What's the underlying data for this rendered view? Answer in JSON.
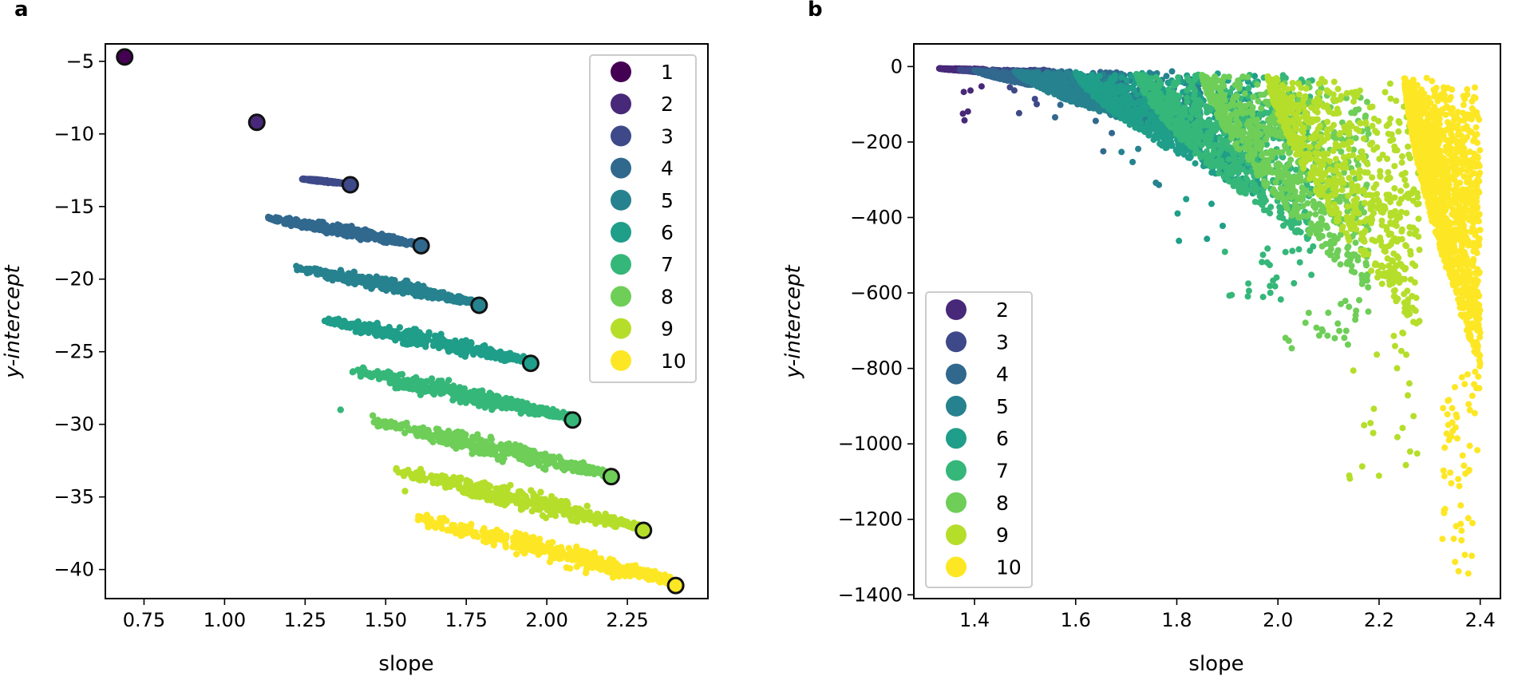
{
  "colors": {
    "1": "#440154",
    "2": "#482878",
    "3": "#3e4989",
    "4": "#31688e",
    "5": "#26828e",
    "6": "#1f9e89",
    "7": "#35b779",
    "8": "#6ece58",
    "9": "#b5de2b",
    "10": "#fde725"
  },
  "chart_data": [
    {
      "panel_label": "a",
      "type": "scatter",
      "xlabel": "slope",
      "ylabel": "y-intercept",
      "xlim": [
        0.63,
        2.5
      ],
      "ylim": [
        -42,
        -3.8
      ],
      "xticks": [
        0.75,
        1.0,
        1.25,
        1.5,
        1.75,
        2.0,
        2.25
      ],
      "xtick_labels": [
        "0.75",
        "1.00",
        "1.25",
        "1.50",
        "1.75",
        "2.00",
        "2.25"
      ],
      "yticks": [
        -5,
        -10,
        -15,
        -20,
        -25,
        -30,
        -35,
        -40
      ],
      "ytick_labels": [
        "−5",
        "−10",
        "−15",
        "−20",
        "−25",
        "−30",
        "−35",
        "−40"
      ],
      "legend_position": "top-right",
      "legend": [
        "1",
        "2",
        "3",
        "4",
        "5",
        "6",
        "7",
        "8",
        "9",
        "10"
      ],
      "highlighted_points": [
        {
          "series": "1",
          "x": 0.69,
          "y": -4.7
        },
        {
          "series": "2",
          "x": 1.1,
          "y": -9.2
        },
        {
          "series": "3",
          "x": 1.39,
          "y": -13.5
        },
        {
          "series": "4",
          "x": 1.61,
          "y": -17.7
        },
        {
          "series": "5",
          "x": 1.79,
          "y": -21.8
        },
        {
          "series": "6",
          "x": 1.95,
          "y": -25.8
        },
        {
          "series": "7",
          "x": 2.08,
          "y": -29.7
        },
        {
          "series": "8",
          "x": 2.2,
          "y": -33.6
        },
        {
          "series": "9",
          "x": 2.3,
          "y": -37.3
        },
        {
          "series": "10",
          "x": 2.4,
          "y": -41.1
        }
      ],
      "clouds": [
        {
          "series": "3",
          "x_range": [
            1.24,
            1.37
          ],
          "y_start": -13.1,
          "y_end": -13.4,
          "spread": 0.2
        },
        {
          "series": "4",
          "x_range": [
            1.13,
            1.6
          ],
          "y_start": -15.8,
          "y_end": -17.6,
          "spread": 1.1
        },
        {
          "series": "5",
          "x_range": [
            1.22,
            1.78
          ],
          "y_start": -19.2,
          "y_end": -21.6,
          "spread": 1.4
        },
        {
          "series": "6",
          "x_range": [
            1.31,
            1.94
          ],
          "y_start": -22.8,
          "y_end": -25.6,
          "spread": 1.6
        },
        {
          "series": "7",
          "x_range": [
            1.39,
            2.07
          ],
          "y_start": -26.3,
          "y_end": -29.5,
          "spread": 1.8
        },
        {
          "series": "8",
          "x_range": [
            1.46,
            2.19
          ],
          "y_start": -29.8,
          "y_end": -33.4,
          "spread": 2.0
        },
        {
          "series": "9",
          "x_range": [
            1.53,
            2.29
          ],
          "y_start": -33.2,
          "y_end": -37.1,
          "spread": 2.1
        },
        {
          "series": "10",
          "x_range": [
            1.6,
            2.39
          ],
          "y_start": -36.5,
          "y_end": -40.8,
          "spread": 2.2
        }
      ],
      "outliers": [
        {
          "series": "7",
          "x": 1.36,
          "y": -29.0
        },
        {
          "series": "7",
          "x": 1.43,
          "y": -26.1
        },
        {
          "series": "8",
          "x": 1.46,
          "y": -29.4
        },
        {
          "series": "9",
          "x": 1.56,
          "y": -34.6
        }
      ]
    },
    {
      "panel_label": "b",
      "type": "scatter",
      "xlabel": "slope",
      "ylabel": "y-intercept",
      "xlim": [
        1.28,
        2.44
      ],
      "ylim": [
        -1410,
        60
      ],
      "xticks": [
        1.4,
        1.6,
        1.8,
        2.0,
        2.2,
        2.4
      ],
      "xtick_labels": [
        "1.4",
        "1.6",
        "1.8",
        "2.0",
        "2.2",
        "2.4"
      ],
      "yticks": [
        0,
        -200,
        -400,
        -600,
        -800,
        -1000,
        -1200,
        -1400
      ],
      "ytick_labels": [
        "0",
        "−200",
        "−400",
        "−600",
        "−800",
        "−1000",
        "−1200",
        "−1400"
      ],
      "legend_position": "bottom-left",
      "legend": [
        "2",
        "3",
        "4",
        "5",
        "6",
        "7",
        "8",
        "9",
        "10"
      ],
      "clouds": [
        {
          "series": "2",
          "x_range": [
            1.33,
            1.42
          ],
          "y_top": -5,
          "y_bottom": -15
        },
        {
          "series": "3",
          "x_range": [
            1.37,
            1.55
          ],
          "y_top": -8,
          "y_bottom": -30
        },
        {
          "series": "4",
          "x_range": [
            1.4,
            1.7
          ],
          "y_top": -10,
          "y_bottom": -90
        },
        {
          "series": "5",
          "x_range": [
            1.48,
            1.85
          ],
          "y_top": -12,
          "y_bottom": -200
        },
        {
          "series": "6",
          "x_range": [
            1.6,
            1.97
          ],
          "y_top": -15,
          "y_bottom": -350
        },
        {
          "series": "7",
          "x_range": [
            1.72,
            2.07
          ],
          "y_top": -18,
          "y_bottom": -480
        },
        {
          "series": "8",
          "x_range": [
            1.85,
            2.18
          ],
          "y_top": -22,
          "y_bottom": -600
        },
        {
          "series": "9",
          "x_range": [
            1.98,
            2.28
          ],
          "y_top": -26,
          "y_bottom": -700
        },
        {
          "series": "10",
          "x_range": [
            2.25,
            2.4
          ],
          "y_top": -30,
          "y_bottom": -800
        }
      ]
    }
  ]
}
